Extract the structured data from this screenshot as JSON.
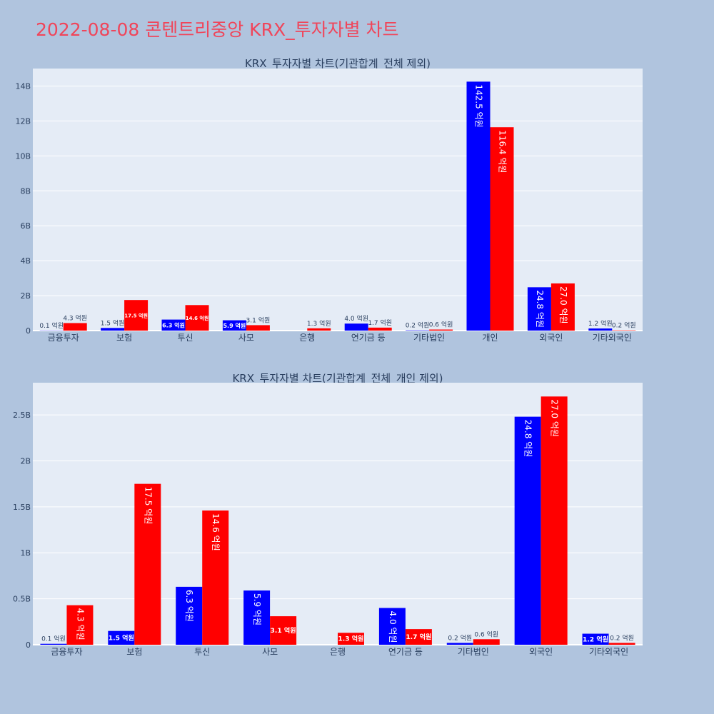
{
  "title": "2022-08-08 콘텐트리중앙 KRX_투자자별 차트",
  "colors": {
    "background": "#b0c4de",
    "plot_bg": "#e5ecf6",
    "title": "#f0455a",
    "series_blue": "#0000ff",
    "series_red": "#ff0000"
  },
  "chart_data": [
    {
      "type": "bar",
      "title": "KRX_투자자별 차트(기관합계_전체 제외)",
      "categories": [
        "금융투자",
        "보험",
        "투신",
        "사모",
        "은행",
        "연기금 등",
        "기타법인",
        "개인",
        "외국인",
        "기타외국인"
      ],
      "series": [
        {
          "color": "#0000ff",
          "values": [
            10000000,
            150000000,
            630000000,
            590000000,
            0,
            400000000,
            20000000,
            14250000000,
            2480000000,
            120000000
          ],
          "labels": [
            "0.1 억원",
            "1.5 억원",
            "6.3 억원",
            "5.9 억원",
            "",
            "4.0 억원",
            "0.2 억원",
            "142.5 억원",
            "24.8 억원",
            "1.2 억원"
          ]
        },
        {
          "color": "#ff0000",
          "values": [
            430000000,
            1750000000,
            1460000000,
            310000000,
            130000000,
            170000000,
            60000000,
            11640000000,
            2700000000,
            20000000
          ],
          "labels": [
            "4.3 억원",
            "17.5 억원",
            "14.6 억원",
            "3.1 억원",
            "1.3 억원",
            "1.7 억원",
            "0.6 억원",
            "116.4 억원",
            "27.0 억원",
            "0.2 억원"
          ]
        }
      ],
      "yticks": [
        0,
        2000000000,
        4000000000,
        6000000000,
        8000000000,
        10000000000,
        12000000000,
        14000000000
      ],
      "ytick_labels": [
        "0",
        "2B",
        "4B",
        "6B",
        "8B",
        "10B",
        "12B",
        "14B"
      ],
      "ylim": [
        0,
        15000000000
      ],
      "grid": true
    },
    {
      "type": "bar",
      "title": "KRX_투자자별 차트(기관합계_전체_개인 제외)",
      "categories": [
        "금융투자",
        "보험",
        "투신",
        "사모",
        "은행",
        "연기금 등",
        "기타법인",
        "외국인",
        "기타외국인"
      ],
      "series": [
        {
          "color": "#0000ff",
          "values": [
            10000000,
            150000000,
            630000000,
            590000000,
            0,
            400000000,
            20000000,
            2480000000,
            120000000
          ],
          "labels": [
            "0.1 억원",
            "1.5 억원",
            "6.3 억원",
            "5.9 억원",
            "",
            "4.0 억원",
            "0.2 억원",
            "24.8 억원",
            "1.2 억원"
          ]
        },
        {
          "color": "#ff0000",
          "values": [
            430000000,
            1750000000,
            1460000000,
            310000000,
            130000000,
            170000000,
            60000000,
            2700000000,
            20000000
          ],
          "labels": [
            "4.3 억원",
            "17.5 억원",
            "14.6 억원",
            "3.1 억원",
            "1.3 억원",
            "1.7 억원",
            "0.6 억원",
            "27.0 억원",
            "0.2 억원"
          ]
        }
      ],
      "yticks": [
        0,
        500000000,
        1000000000,
        1500000000,
        2000000000,
        2500000000
      ],
      "ytick_labels": [
        "0",
        "0.5B",
        "1B",
        "1.5B",
        "2B",
        "2.5B"
      ],
      "ylim": [
        0,
        2850000000
      ],
      "grid": true
    }
  ]
}
